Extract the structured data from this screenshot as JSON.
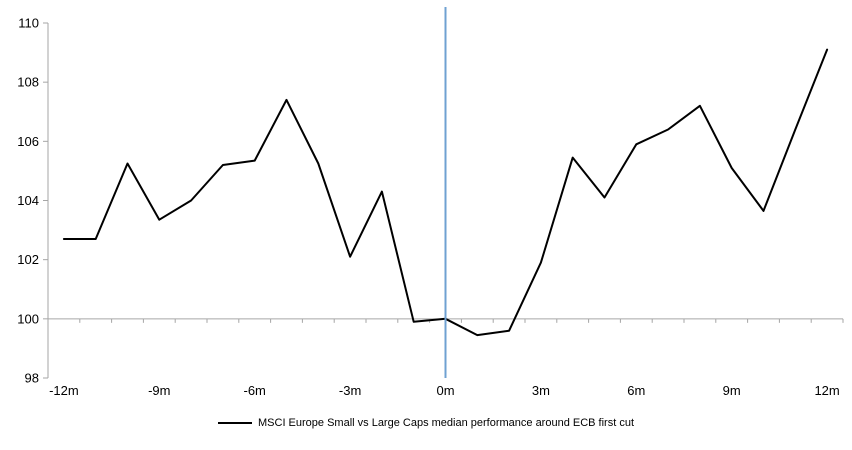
{
  "chart_data": {
    "type": "line",
    "title": "",
    "legend": "MSCI Europe Small vs Large Caps median performance around ECB first cut",
    "legend_position": "bottom-center",
    "x_categories": [
      "-12m",
      "-11m",
      "-10m",
      "-9m",
      "-8m",
      "-7m",
      "-6m",
      "-5m",
      "-4m",
      "-3m",
      "-2m",
      "-1m",
      "0m",
      "1m",
      "2m",
      "3m",
      "4m",
      "5m",
      "6m",
      "7m",
      "8m",
      "9m",
      "10m",
      "11m",
      "12m"
    ],
    "x_tick_labels": [
      "-12m",
      "-9m",
      "-6m",
      "-3m",
      "0m",
      "3m",
      "6m",
      "9m",
      "12m"
    ],
    "x_label_every": 3,
    "series": [
      {
        "name": "MSCI Europe Small vs Large Caps median performance around ECB first cut",
        "color": "#000000",
        "values": [
          102.7,
          102.7,
          105.25,
          103.35,
          104.0,
          105.2,
          105.35,
          107.4,
          105.25,
          102.1,
          104.3,
          99.9,
          100.0,
          99.45,
          99.6,
          101.9,
          105.45,
          104.1,
          105.9,
          106.4,
          107.2,
          105.1,
          103.65,
          106.4,
          109.1
        ]
      }
    ],
    "event_line": {
      "x_category": "0m",
      "color": "#6FA1D2"
    },
    "baseline_value": 100,
    "ylim": [
      98,
      110
    ],
    "y_ticks": [
      "98",
      "100",
      "102",
      "104",
      "106",
      "108",
      "110"
    ],
    "grid": "none",
    "axis_color": "#A6A6A6",
    "background": "#FFFFFF"
  }
}
